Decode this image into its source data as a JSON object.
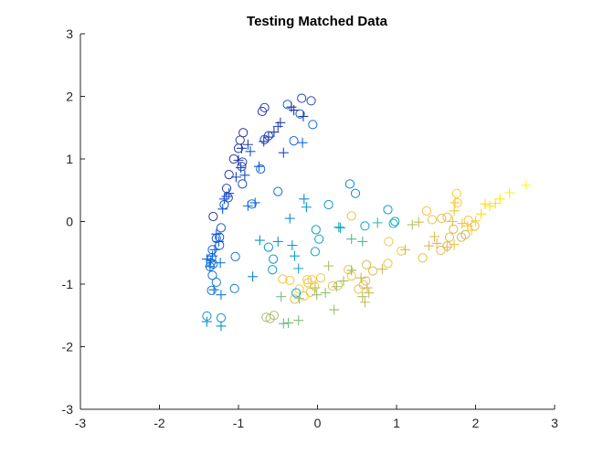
{
  "chart_data": {
    "type": "scatter",
    "title": "Testing Matched Data",
    "xlabel": "",
    "ylabel": "",
    "xlim": [
      -3,
      3
    ],
    "ylim": [
      -3,
      3
    ],
    "xticks": [
      -3,
      -2,
      -1,
      0,
      1,
      2,
      3
    ],
    "yticks": [
      -3,
      -2,
      -1,
      0,
      1,
      2,
      3
    ],
    "xtick_labels": [
      "-3",
      "-2",
      "-1",
      "0",
      "1",
      "2",
      "3"
    ],
    "ytick_labels": [
      "-3",
      "-2",
      "-1",
      "0",
      "1",
      "2",
      "3"
    ],
    "grid": false,
    "legend": "none",
    "colormap": "parula",
    "series": [
      {
        "marker": "circle",
        "points": [
          [
            -0.2,
            1.97,
            0.08
          ],
          [
            -0.08,
            1.93,
            0.1
          ],
          [
            -0.38,
            1.87,
            0.14
          ],
          [
            -0.22,
            1.72,
            0.14
          ],
          [
            -0.06,
            1.55,
            0.22
          ],
          [
            -0.67,
            1.82,
            0.06
          ],
          [
            -0.7,
            1.76,
            0.05
          ],
          [
            -0.62,
            1.37,
            0.08
          ],
          [
            -0.67,
            1.31,
            0.1
          ],
          [
            -0.94,
            1.42,
            0.04
          ],
          [
            -0.98,
            1.3,
            0.05
          ],
          [
            -1.0,
            1.17,
            0.06
          ],
          [
            -1.06,
            1.0,
            0.06
          ],
          [
            -0.95,
            0.95,
            0.07
          ],
          [
            -0.96,
            0.88,
            0.09
          ],
          [
            -1.12,
            0.75,
            0.06
          ],
          [
            -0.95,
            0.6,
            0.1
          ],
          [
            -0.72,
            0.84,
            0.19
          ],
          [
            -0.3,
            1.29,
            0.22
          ],
          [
            -1.15,
            0.53,
            0.08
          ],
          [
            -1.13,
            0.38,
            0.1
          ],
          [
            -1.18,
            0.27,
            0.12
          ],
          [
            -0.83,
            0.28,
            0.21
          ],
          [
            -0.5,
            0.48,
            0.25
          ],
          [
            -1.32,
            0.08,
            0.04
          ],
          [
            -1.22,
            -0.1,
            0.14
          ],
          [
            -1.24,
            -0.25,
            0.14
          ],
          [
            -1.28,
            -0.27,
            0.15
          ],
          [
            -1.24,
            -0.38,
            0.17
          ],
          [
            -1.33,
            -0.45,
            0.18
          ],
          [
            -1.34,
            -0.58,
            0.2
          ],
          [
            -1.35,
            -0.66,
            0.22
          ],
          [
            -1.36,
            -0.72,
            0.24
          ],
          [
            -1.33,
            -0.86,
            0.25
          ],
          [
            -1.28,
            -0.97,
            0.26
          ],
          [
            -1.34,
            -1.1,
            0.27
          ],
          [
            -1.04,
            -0.56,
            0.28
          ],
          [
            -1.32,
            -0.68,
            0.23
          ],
          [
            -1.05,
            -1.07,
            0.3
          ],
          [
            -1.4,
            -1.51,
            0.4
          ],
          [
            -1.22,
            -1.54,
            0.42
          ],
          [
            -0.62,
            -0.41,
            0.4
          ],
          [
            -0.56,
            -0.6,
            0.42
          ],
          [
            -0.57,
            -0.77,
            0.43
          ],
          [
            -0.02,
            -0.13,
            0.45
          ],
          [
            0.02,
            -0.28,
            0.46
          ],
          [
            -0.03,
            -0.48,
            0.48
          ],
          [
            0.14,
            0.27,
            0.4
          ],
          [
            0.41,
            0.6,
            0.35
          ],
          [
            0.48,
            0.45,
            0.36
          ],
          [
            0.89,
            0.19,
            0.45
          ],
          [
            0.6,
            -0.07,
            0.48
          ],
          [
            0.96,
            -0.03,
            0.52
          ],
          [
            0.43,
            0.09,
            0.88
          ],
          [
            0.98,
            0.0,
            0.5
          ],
          [
            1.38,
            0.17,
            0.9
          ],
          [
            1.45,
            0.03,
            0.88
          ],
          [
            1.57,
            0.05,
            0.85
          ],
          [
            1.64,
            0.07,
            0.87
          ],
          [
            1.77,
            0.3,
            0.92
          ],
          [
            1.76,
            0.45,
            0.93
          ],
          [
            1.91,
            0.02,
            0.9
          ],
          [
            1.99,
            -0.07,
            0.88
          ],
          [
            1.87,
            -0.21,
            0.8
          ],
          [
            1.82,
            -0.25,
            0.82
          ],
          [
            1.72,
            -0.12,
            0.84
          ],
          [
            1.67,
            -0.25,
            0.86
          ],
          [
            1.64,
            -0.39,
            0.85
          ],
          [
            1.56,
            -0.46,
            0.86
          ],
          [
            1.33,
            -0.58,
            0.87
          ],
          [
            0.9,
            -0.32,
            0.9
          ],
          [
            0.89,
            -0.67,
            0.88
          ],
          [
            1.06,
            -0.47,
            0.9
          ],
          [
            0.62,
            -0.69,
            0.84
          ],
          [
            0.7,
            -0.79,
            0.86
          ],
          [
            0.61,
            -0.95,
            0.84
          ],
          [
            0.58,
            -1.01,
            0.86
          ],
          [
            0.52,
            -1.08,
            0.88
          ],
          [
            0.43,
            -0.87,
            0.9
          ],
          [
            0.39,
            -0.77,
            0.88
          ],
          [
            0.19,
            -1.03,
            0.86
          ],
          [
            0.26,
            -1.02,
            0.88
          ],
          [
            0.04,
            -0.9,
            0.9
          ],
          [
            -0.07,
            -0.93,
            0.9
          ],
          [
            -0.13,
            -0.93,
            0.92
          ],
          [
            -0.12,
            -0.98,
            0.9
          ],
          [
            -0.44,
            -0.92,
            0.9
          ],
          [
            -0.35,
            -0.94,
            0.92
          ],
          [
            -0.23,
            -1.08,
            0.92
          ],
          [
            -0.17,
            -1.19,
            0.9
          ],
          [
            -0.04,
            -1.03,
            0.9
          ],
          [
            -0.09,
            -1.13,
            0.9
          ],
          [
            -0.29,
            -1.24,
            0.86
          ],
          [
            -0.27,
            -1.14,
            0.5
          ],
          [
            -0.6,
            -1.55,
            0.75
          ],
          [
            -0.65,
            -1.53,
            0.75
          ],
          [
            -0.55,
            -1.5,
            0.77
          ]
        ]
      },
      {
        "marker": "plus",
        "points": [
          [
            -0.33,
            1.83,
            0.03
          ],
          [
            -0.3,
            1.78,
            0.04
          ],
          [
            -0.18,
            1.68,
            0.06
          ],
          [
            -0.47,
            1.58,
            0.05
          ],
          [
            -0.5,
            1.52,
            0.07
          ],
          [
            -0.55,
            1.43,
            0.05
          ],
          [
            -0.62,
            1.35,
            0.07
          ],
          [
            -0.68,
            1.28,
            0.08
          ],
          [
            -0.88,
            1.23,
            0.06
          ],
          [
            -0.96,
            1.17,
            0.08
          ],
          [
            -0.85,
            1.12,
            0.12
          ],
          [
            -0.43,
            1.1,
            0.1
          ],
          [
            -0.19,
            1.26,
            0.2
          ],
          [
            -1.0,
            0.98,
            0.04
          ],
          [
            -0.97,
            0.86,
            0.1
          ],
          [
            -0.92,
            0.74,
            0.1
          ],
          [
            -0.74,
            0.88,
            0.14
          ],
          [
            -1.03,
            0.71,
            0.08
          ],
          [
            -1.12,
            0.45,
            0.1
          ],
          [
            -1.15,
            0.4,
            0.12
          ],
          [
            -1.18,
            0.36,
            0.12
          ],
          [
            -0.79,
            0.3,
            0.2
          ],
          [
            -0.88,
            0.25,
            0.22
          ],
          [
            -1.2,
            0.2,
            0.16
          ],
          [
            -1.28,
            -0.2,
            0.14
          ],
          [
            -1.25,
            -0.32,
            0.16
          ],
          [
            -1.3,
            -0.45,
            0.18
          ],
          [
            -1.33,
            -0.55,
            0.19
          ],
          [
            -1.4,
            -0.6,
            0.22
          ],
          [
            -1.35,
            -0.62,
            0.2
          ],
          [
            -1.36,
            -0.72,
            0.24
          ],
          [
            -1.23,
            -0.66,
            0.26
          ],
          [
            -1.31,
            -1.09,
            0.26
          ],
          [
            -1.22,
            -1.17,
            0.28
          ],
          [
            -0.82,
            -0.88,
            0.33
          ],
          [
            -0.73,
            -0.3,
            0.4
          ],
          [
            -0.5,
            -0.32,
            0.42
          ],
          [
            -0.35,
            0.05,
            0.38
          ],
          [
            -0.17,
            0.36,
            0.35
          ],
          [
            -0.14,
            0.23,
            0.4
          ],
          [
            -0.32,
            -0.38,
            0.44
          ],
          [
            -0.29,
            -0.55,
            0.46
          ],
          [
            -0.24,
            -0.75,
            0.47
          ],
          [
            0.27,
            -0.09,
            0.5
          ],
          [
            0.29,
            -0.1,
            0.52
          ],
          [
            0.76,
            -0.02,
            0.6
          ],
          [
            0.57,
            -0.32,
            0.62
          ],
          [
            0.43,
            -0.28,
            0.63
          ],
          [
            -1.4,
            -1.6,
            0.38
          ],
          [
            -1.22,
            -1.67,
            0.4
          ],
          [
            1.2,
            -0.05,
            0.78
          ],
          [
            1.28,
            -0.01,
            0.8
          ],
          [
            1.41,
            -0.39,
            0.84
          ],
          [
            1.51,
            -0.35,
            0.86
          ],
          [
            1.71,
            0.0,
            0.88
          ],
          [
            1.73,
            0.17,
            0.9
          ],
          [
            1.74,
            0.3,
            0.92
          ],
          [
            1.83,
            -0.03,
            0.9
          ],
          [
            1.9,
            -0.07,
            0.92
          ],
          [
            1.95,
            -0.14,
            0.93
          ],
          [
            2.07,
            0.12,
            0.95
          ],
          [
            2.12,
            0.28,
            0.95
          ],
          [
            2.18,
            0.25,
            0.96
          ],
          [
            2.25,
            0.29,
            0.96
          ],
          [
            2.31,
            0.36,
            0.97
          ],
          [
            2.43,
            0.46,
            0.98
          ],
          [
            2.64,
            0.58,
            1.0
          ],
          [
            2.0,
            0.01,
            0.94
          ],
          [
            1.73,
            -0.37,
            0.88
          ],
          [
            1.64,
            -0.41,
            0.88
          ],
          [
            1.48,
            -0.24,
            0.86
          ],
          [
            1.11,
            -0.45,
            0.84
          ],
          [
            0.82,
            -0.76,
            0.82
          ],
          [
            0.55,
            -0.9,
            0.8
          ],
          [
            0.57,
            -1.2,
            0.78
          ],
          [
            0.65,
            -1.14,
            0.8
          ],
          [
            0.6,
            -1.29,
            0.8
          ],
          [
            0.63,
            -1.06,
            0.82
          ],
          [
            0.33,
            -0.95,
            0.75
          ],
          [
            0.43,
            -0.78,
            0.72
          ],
          [
            0.14,
            -0.71,
            0.76
          ],
          [
            0.24,
            -1.04,
            0.74
          ],
          [
            0.1,
            -1.14,
            0.72
          ],
          [
            -0.01,
            -1.17,
            0.74
          ],
          [
            -0.46,
            -1.2,
            0.7
          ],
          [
            -0.23,
            -1.23,
            0.72
          ],
          [
            0.21,
            -1.41,
            0.74
          ],
          [
            -0.43,
            -1.63,
            0.66
          ],
          [
            -0.37,
            -1.62,
            0.68
          ],
          [
            -0.24,
            -1.58,
            0.7
          ],
          [
            -0.03,
            -1.06,
            0.76
          ]
        ]
      }
    ]
  }
}
